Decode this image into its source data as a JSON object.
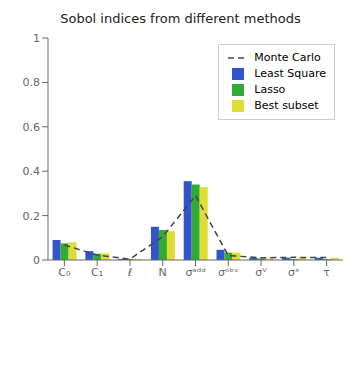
{
  "chart_data": {
    "type": "bar",
    "title": "Sobol indices from different methods",
    "categories": [
      "C₀",
      "C₁",
      "ℓ",
      "N",
      "σᵃᵈᵈ",
      "σᵒᵇˢ",
      "σⱽ",
      "σˣ",
      "τ"
    ],
    "series": [
      {
        "name": "Monte Carlo",
        "type": "line",
        "line_style": "dashed",
        "color": "#444444",
        "values": [
          0.068,
          0.022,
          0.004,
          0.105,
          0.29,
          0.02,
          0.01,
          0.012,
          0.011
        ]
      },
      {
        "name": "Least Square",
        "type": "bar",
        "color": "#3355cc",
        "values": [
          0.09,
          0.04,
          0.005,
          0.15,
          0.355,
          0.046,
          0.01,
          0.01,
          0.01
        ]
      },
      {
        "name": "Lasso",
        "type": "bar",
        "color": "#33aa33",
        "values": [
          0.075,
          0.028,
          0.004,
          0.135,
          0.34,
          0.033,
          0.007,
          0.005,
          0.004
        ]
      },
      {
        "name": "Best subset",
        "type": "bar",
        "color": "#dddd33",
        "values": [
          0.08,
          0.03,
          0.004,
          0.13,
          0.328,
          0.033,
          0.007,
          0.01,
          0.01
        ]
      }
    ],
    "ylim": [
      0,
      1.0
    ],
    "yticks": [
      0.0,
      0.2,
      0.4,
      0.6,
      0.8,
      1.0
    ],
    "grid": false,
    "legend": "upper right"
  }
}
